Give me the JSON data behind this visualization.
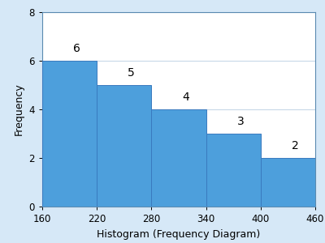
{
  "bin_edges": [
    160,
    220,
    280,
    340,
    400,
    460
  ],
  "frequencies": [
    6,
    5,
    4,
    3,
    2
  ],
  "bar_color": "#4d9fdc",
  "bar_edgecolor": "#3a7abf",
  "xlabel": "Histogram (Frequency Diagram)",
  "ylabel": "Frequency",
  "xlim": [
    160,
    460
  ],
  "ylim": [
    0,
    8
  ],
  "yticks": [
    0,
    2,
    4,
    6,
    8
  ],
  "xticks": [
    160,
    220,
    280,
    340,
    400,
    460
  ],
  "label_fontsize": 9,
  "tick_fontsize": 8.5,
  "annotation_fontsize": 10,
  "background_color": "#d6e8f7",
  "plot_background": "#ffffff",
  "grid_color": "#c8d8e8",
  "spine_color": "#5a8ab0",
  "label_offsets": [
    0.25,
    0.25,
    0.25,
    0.25,
    0.25
  ]
}
